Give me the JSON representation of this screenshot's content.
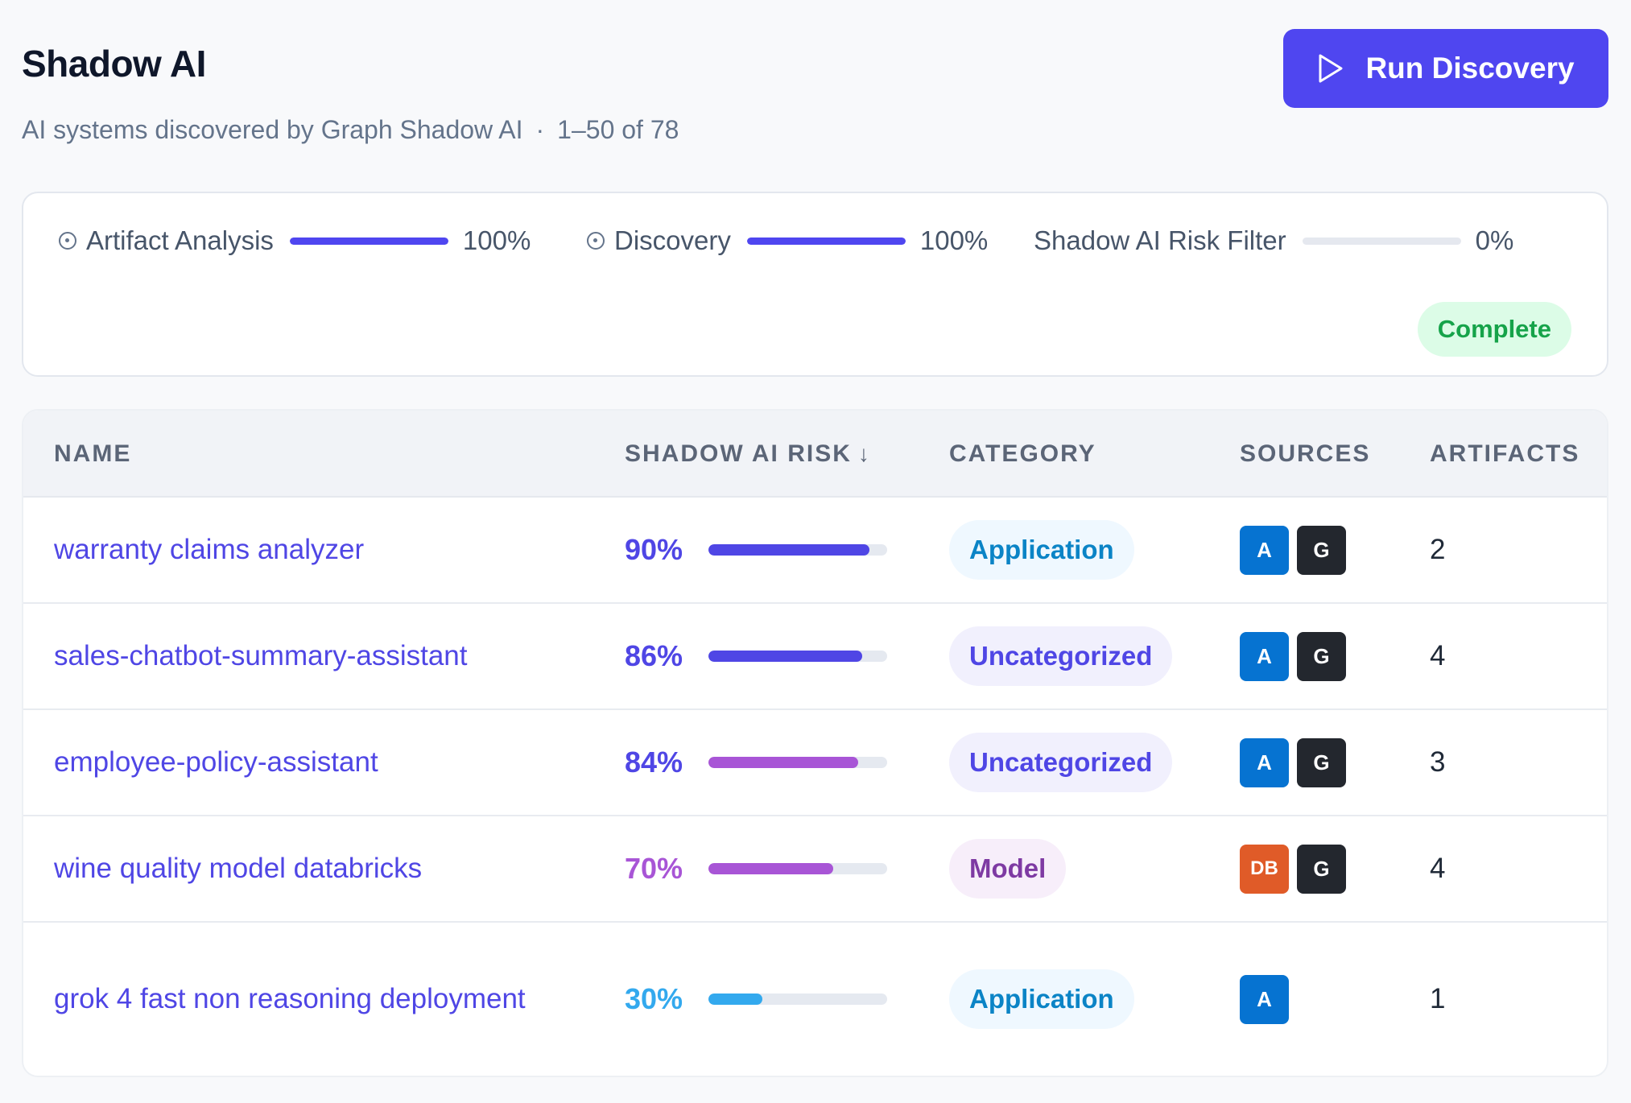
{
  "header": {
    "title": "Shadow AI",
    "subtitle": "AI systems discovered by Graph Shadow AI",
    "separator": "·",
    "range": "1–50 of 78",
    "run_button": {
      "label": "Run Discovery",
      "icon": "play-icon"
    }
  },
  "progress": {
    "stages": [
      {
        "label": "Artifact Analysis",
        "percent_label": "100%",
        "value": 100,
        "icon": "clock-icon"
      },
      {
        "label": "Discovery",
        "percent_label": "100%",
        "value": 100,
        "icon": "clock-icon"
      },
      {
        "label": "Shadow AI Risk Filter",
        "percent_label": "0%",
        "value": 0,
        "icon": ""
      }
    ],
    "status": "Complete",
    "accent": "#4f46f0",
    "status_color": "#16a34a"
  },
  "table": {
    "columns": {
      "name": "NAME",
      "risk": "SHADOW AI RISK",
      "risk_sort_icon": "↓",
      "category": "CATEGORY",
      "sources": "SOURCES",
      "artifacts": "ARTIFACTS"
    },
    "rows": [
      {
        "name": "warranty claims analyzer",
        "risk_label": "90%",
        "risk": 90,
        "risk_color": "#4f46e5",
        "category": "Application",
        "category_style": "application",
        "sources": [
          {
            "label": "A",
            "kind": "azure"
          },
          {
            "label": "G",
            "kind": "github"
          }
        ],
        "artifacts": "2"
      },
      {
        "name": "sales-chatbot-summary-assistant",
        "risk_label": "86%",
        "risk": 86,
        "risk_color": "#4f46e5",
        "category": "Uncategorized",
        "category_style": "uncategorized",
        "sources": [
          {
            "label": "A",
            "kind": "azure"
          },
          {
            "label": "G",
            "kind": "github"
          }
        ],
        "artifacts": "4"
      },
      {
        "name": "employee-policy-assistant",
        "risk_label": "84%",
        "risk": 84,
        "risk_color": "#4f46e5",
        "bar_color": "#a855d6",
        "category": "Uncategorized",
        "category_style": "uncategorized",
        "sources": [
          {
            "label": "A",
            "kind": "azure"
          },
          {
            "label": "G",
            "kind": "github"
          }
        ],
        "artifacts": "3"
      },
      {
        "name": "wine quality model databricks",
        "risk_label": "70%",
        "risk": 70,
        "risk_color": "#a855d6",
        "bar_color": "#a855d6",
        "category": "Model",
        "category_style": "model",
        "sources": [
          {
            "label": "DB",
            "kind": "databricks"
          },
          {
            "label": "G",
            "kind": "github"
          }
        ],
        "artifacts": "4"
      },
      {
        "name": "grok 4 fast non reasoning deployment",
        "risk_label": "30%",
        "risk": 30,
        "risk_color": "#33a9ee",
        "bar_color": "#33a9ee",
        "category": "Application",
        "category_style": "application",
        "sources": [
          {
            "label": "A",
            "kind": "azure"
          }
        ],
        "artifacts": "1"
      }
    ]
  }
}
